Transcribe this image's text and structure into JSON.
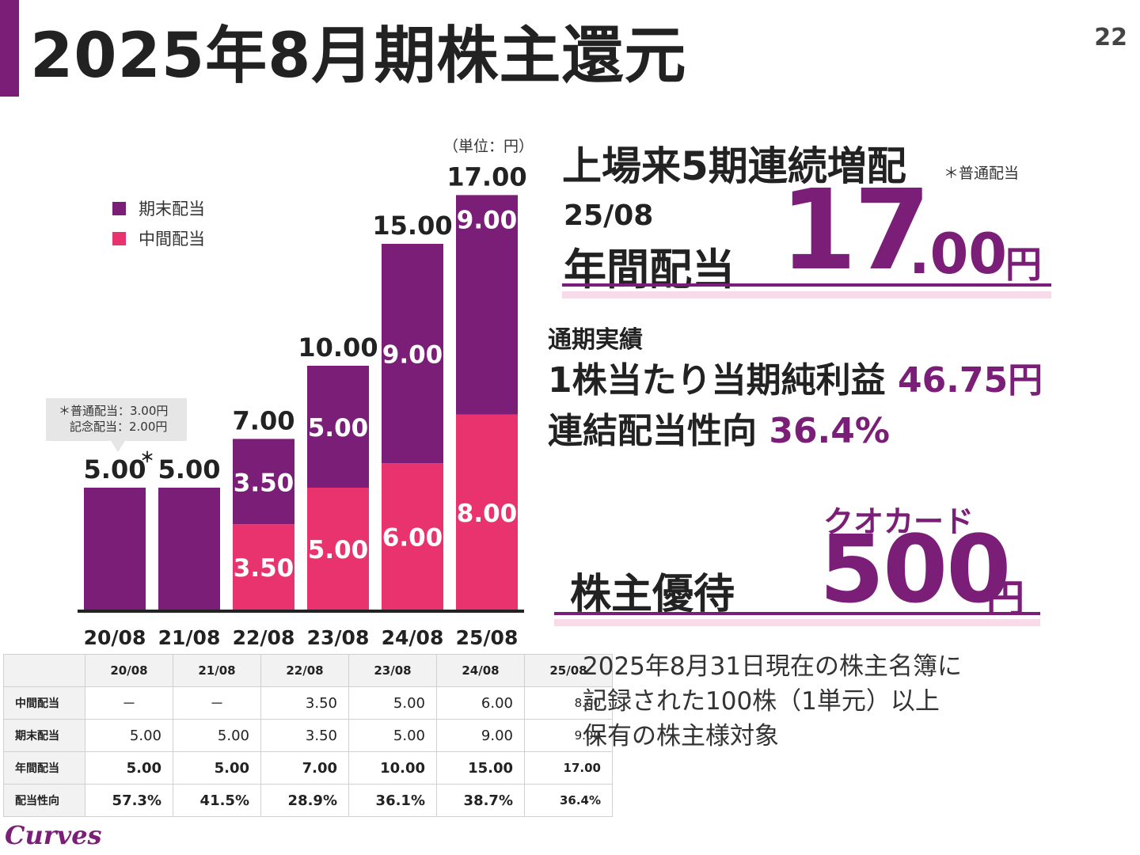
{
  "title": "2025年8月期株主還元",
  "page_number": "22",
  "colors": {
    "final": "#7b1e77",
    "interim": "#e8336e"
  },
  "chart_data": {
    "type": "bar",
    "stacked": true,
    "unit": "（単位：円）",
    "categories": [
      "20/08",
      "21/08",
      "22/08",
      "23/08",
      "24/08",
      "25/08"
    ],
    "series": [
      {
        "name": "中間配当",
        "values": [
          0,
          0,
          3.5,
          5.0,
          6.0,
          8.0
        ],
        "labels": [
          "",
          "",
          "3.50",
          "5.00",
          "6.00",
          "8.00"
        ]
      },
      {
        "name": "期末配当",
        "values": [
          5.0,
          5.0,
          3.5,
          5.0,
          9.0,
          9.0
        ],
        "labels": [
          "",
          "",
          "3.50",
          "5.00",
          "9.00",
          "9.00"
        ]
      }
    ],
    "totals": [
      "5.00",
      "5.00",
      "7.00",
      "10.00",
      "15.00",
      "17.00"
    ],
    "asterisk": "＊",
    "ylim": [
      0,
      17
    ],
    "legend_position": "top-left"
  },
  "legend": [
    {
      "label": "期末配当"
    },
    {
      "label": "中間配当"
    }
  ],
  "callout": {
    "line1": "＊普通配当：3.00円",
    "line2": "記念配当：2.00円"
  },
  "table": {
    "headers": [
      "20/08",
      "21/08",
      "22/08",
      "23/08",
      "24/08",
      "25/08"
    ],
    "rows": [
      {
        "label": "中間配当",
        "values": [
          "－",
          "－",
          "3.50",
          "5.00",
          "6.00",
          "8.00"
        ]
      },
      {
        "label": "期末配当",
        "values": [
          "5.00",
          "5.00",
          "3.50",
          "5.00",
          "9.00",
          "9.00"
        ]
      },
      {
        "label": "年間配当",
        "values": [
          "5.00",
          "5.00",
          "7.00",
          "10.00",
          "15.00",
          "17.00"
        ]
      },
      {
        "label": "配当性向",
        "values": [
          "57.3%",
          "41.5%",
          "28.9%",
          "36.1%",
          "38.7%",
          "36.4%"
        ]
      }
    ]
  },
  "logo": "Curves",
  "right": {
    "headline": "上場来5期連続増配",
    "headline_note": "＊普通配当",
    "period": "25/08",
    "annual_label": "年間配当",
    "annual_int": "17",
    "annual_dec": ".00",
    "yen": "円",
    "perf_label": "通期実績",
    "eps_label": "1株当たり当期純利益",
    "eps_value": "46.75円",
    "payout_label": "連結配当性向",
    "payout_value": "36.4%",
    "benefit_sub": "クオカード",
    "benefit_label": "株主優待",
    "benefit_value": "500",
    "benefit_yen": "円",
    "condition_lines": [
      "2025年8月31日現在の株主名簿に",
      "記録された100株（1単元）以上",
      "保有の株主様対象"
    ]
  }
}
